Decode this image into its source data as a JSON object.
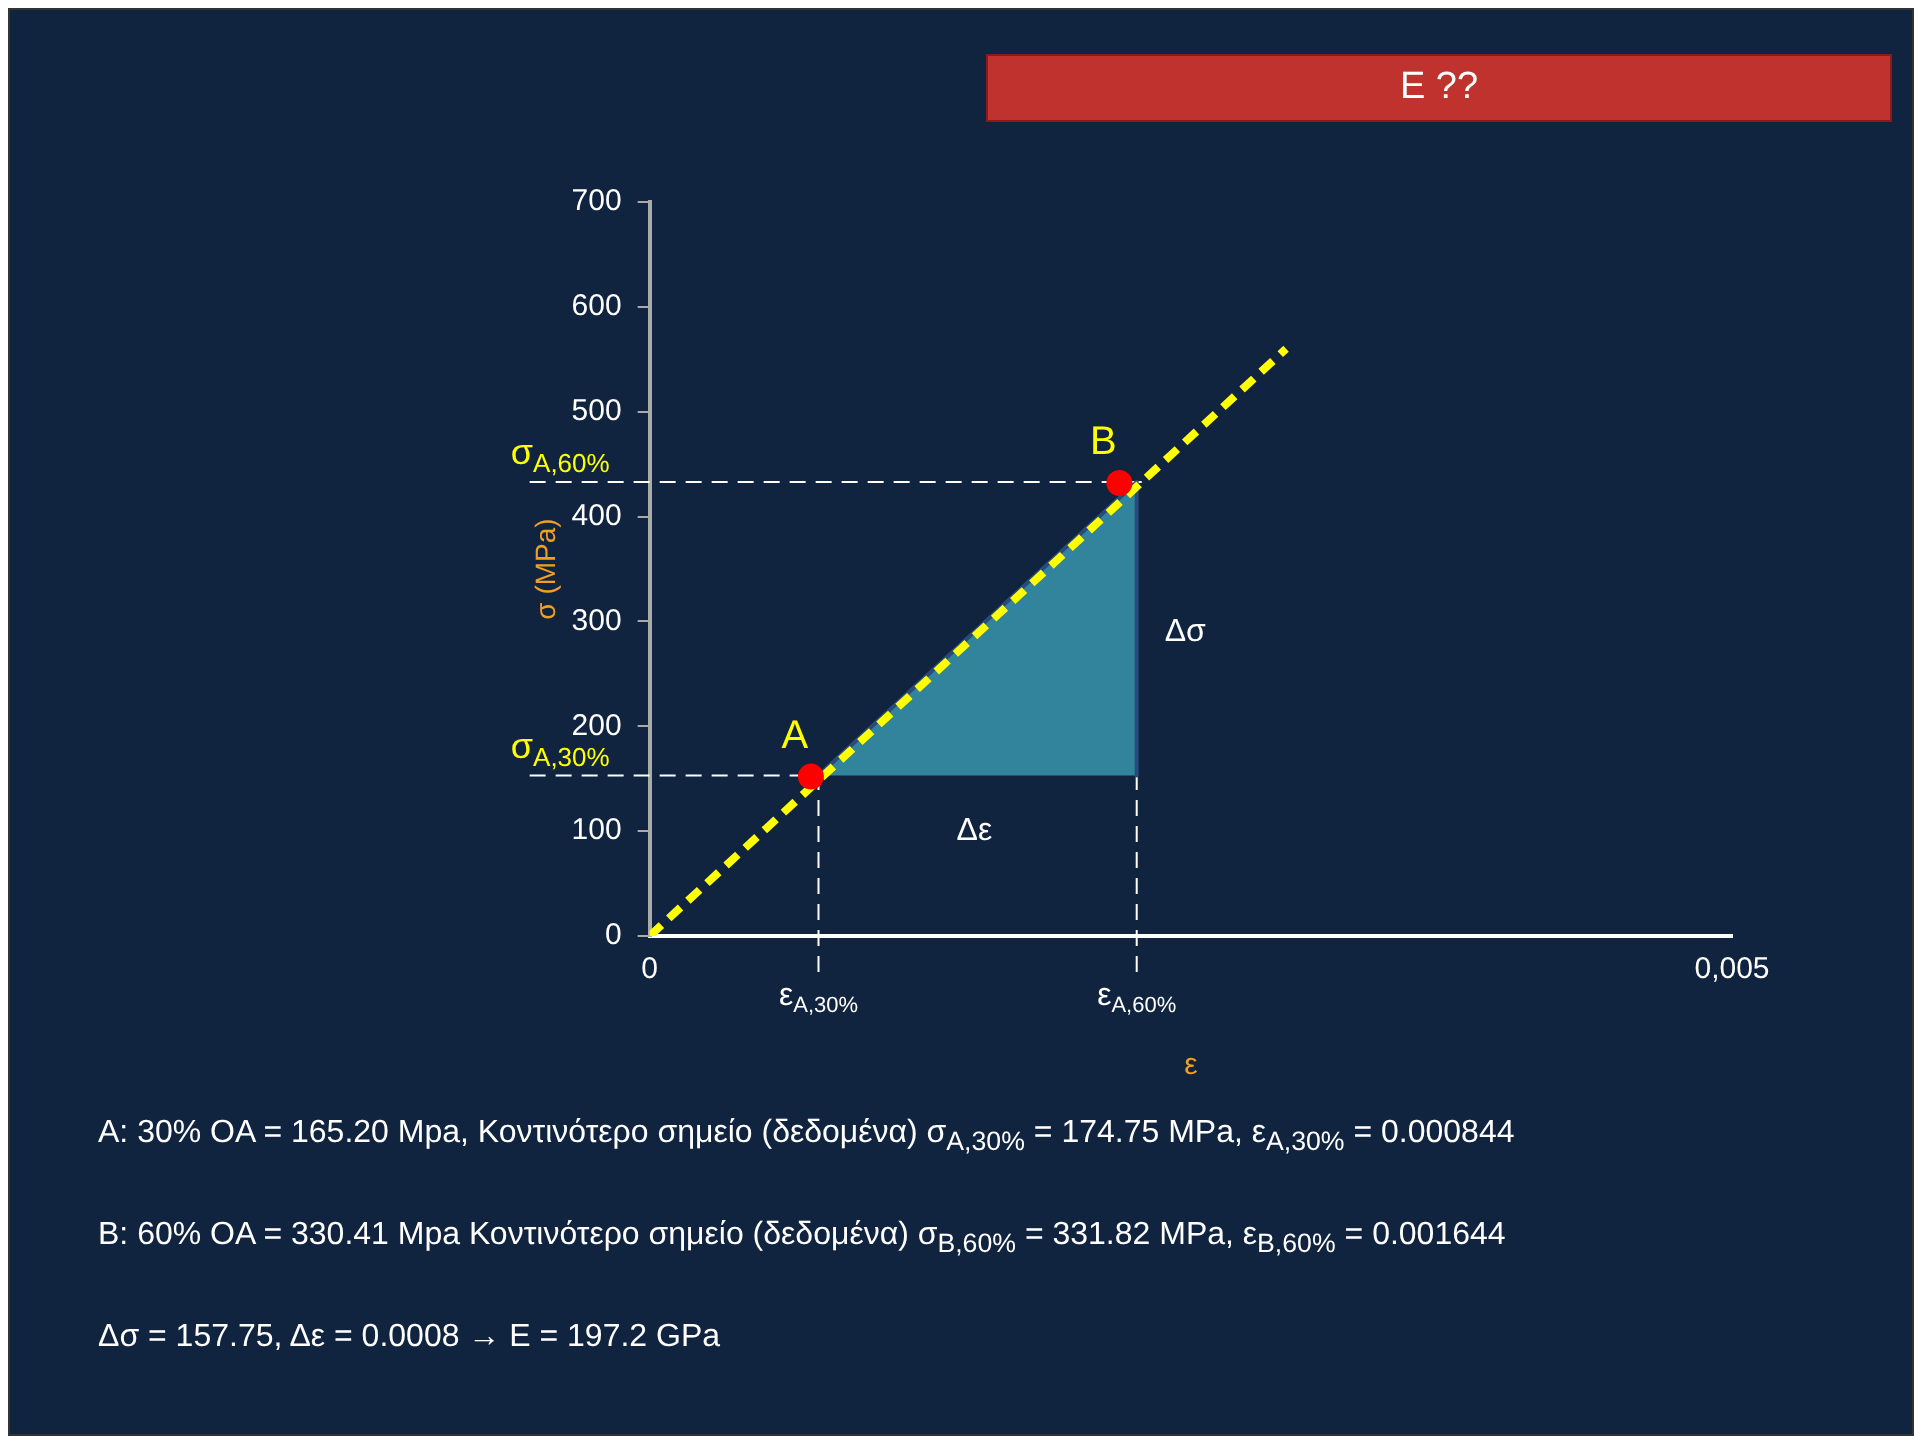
{
  "chart_data": {
    "type": "line",
    "title": "E ??",
    "xlabel": "ε",
    "ylabel": "σ (MPa)",
    "xlim": [
      0,
      0.005
    ],
    "xticks": [
      0,
      {
        "value": 0.005,
        "label": "0,005"
      }
    ],
    "ylim": [
      0,
      700
    ],
    "yticks": [
      0,
      100,
      200,
      300,
      400,
      500,
      600,
      700
    ],
    "grid": false,
    "legend": false,
    "series": [
      {
        "color": "#ffff00",
        "line_style": "dashed",
        "marker": "none",
        "x": [
          0,
          0.00294
        ],
        "values": [
          0,
          560
        ]
      },
      {
        "type": "area",
        "color": "#31849b",
        "marker": "none",
        "x": [
          0.00078,
          0.00225,
          0.00225
        ],
        "values": [
          153,
          433,
          153
        ]
      },
      {
        "type": "scatter",
        "color": "#ff0000",
        "marker": "circle",
        "x": [
          0.000745,
          0.00217
        ],
        "values": [
          152,
          432
        ]
      }
    ],
    "ref_lines": [
      {
        "axis": "y",
        "value": 153,
        "label": "σ$_{A,30%}$",
        "line_style": "dashed",
        "color": "#ffffff"
      },
      {
        "axis": "y",
        "value": 433,
        "label": "σ$_{A,60%}$",
        "line_style": "dashed",
        "color": "#ffffff"
      },
      {
        "axis": "x",
        "value": 0.00078,
        "label": "ε$_{A,30%}$",
        "line_style": "dashed",
        "color": "#ffffff"
      },
      {
        "axis": "x",
        "value": 0.00225,
        "label": "ε$_{A,60%}$",
        "line_style": "dashed",
        "color": "#ffffff"
      }
    ],
    "annotations": [
      {
        "text": "A",
        "x": 0.000745,
        "y": 152
      },
      {
        "text": "B",
        "x": 0.00217,
        "y": 432
      },
      {
        "text": "Δσ",
        "x": 0.00225,
        "y": 290
      },
      {
        "text": "Δε",
        "x": 0.0015,
        "y": 153
      },
      "A: 30% OA = 165.20 Mpa, Κοντινότερο σημείο (δεδομένα) σ$_{A,30%}$ = 174.75 MPa, ε$_{A,30%}$ = 0.000844",
      "B: 60% OA = 330.41 Mpa Κοντινότερο σημείο (δεδομένα)  σ$_{B,60%}$ = 331.82 MPa, ε$_{B,60%}$ = 0.001644",
      "Δσ = 157.75, Δε = 0.0008 → E = 197.2 GPa"
    ]
  }
}
